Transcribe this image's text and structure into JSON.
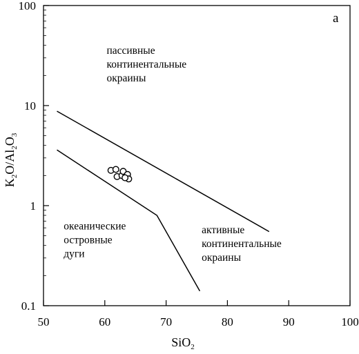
{
  "chart_data": {
    "type": "scatter",
    "panel_label": "а",
    "xlabel": {
      "main": "SiO",
      "sub": "2"
    },
    "ylabel": {
      "parts": [
        {
          "t": "K",
          "sub": false
        },
        {
          "t": "2",
          "sub": true
        },
        {
          "t": "O/Al",
          "sub": false
        },
        {
          "t": "2",
          "sub": true
        },
        {
          "t": "O",
          "sub": false
        },
        {
          "t": "3",
          "sub": true
        }
      ]
    },
    "x_scale": "linear",
    "y_scale": "log",
    "xlim": [
      50,
      100
    ],
    "ylim": [
      0.1,
      100
    ],
    "x_ticks": [
      50,
      60,
      70,
      80,
      90,
      100
    ],
    "x_tick_labels": [
      "50",
      "60",
      "70",
      "80",
      "90",
      "100"
    ],
    "y_ticks": [
      0.1,
      1,
      10,
      100
    ],
    "y_tick_labels": [
      "0.1",
      "1",
      "10",
      "100"
    ],
    "grid": false,
    "boundary_lines": [
      {
        "name": "upper",
        "points": [
          [
            52.2,
            8.8
          ],
          [
            86.8,
            0.55
          ]
        ]
      },
      {
        "name": "lower",
        "points": [
          [
            52.2,
            3.6
          ],
          [
            68.5,
            0.8
          ],
          [
            75.5,
            0.14
          ]
        ]
      }
    ],
    "regions": [
      {
        "id": "passive",
        "lines": [
          "пассивные",
          "континентальные",
          "окраины"
        ],
        "x": 60.3,
        "y": 33
      },
      {
        "id": "oceanic",
        "lines": [
          "океанические",
          "островные",
          "дуги"
        ],
        "x": 53.3,
        "y": 0.58
      },
      {
        "id": "active",
        "lines": [
          "активные",
          "континентальные",
          "окраины"
        ],
        "x": 75.8,
        "y": 0.53
      }
    ],
    "points": [
      {
        "x": 61.0,
        "y": 2.25
      },
      {
        "x": 61.8,
        "y": 2.3
      },
      {
        "x": 62.0,
        "y": 1.95
      },
      {
        "x": 62.8,
        "y": 2.0
      },
      {
        "x": 63.0,
        "y": 2.2
      },
      {
        "x": 63.4,
        "y": 1.95
      },
      {
        "x": 63.7,
        "y": 2.05
      },
      {
        "x": 63.9,
        "y": 1.85
      },
      {
        "x": 63.3,
        "y": 1.9
      }
    ]
  }
}
